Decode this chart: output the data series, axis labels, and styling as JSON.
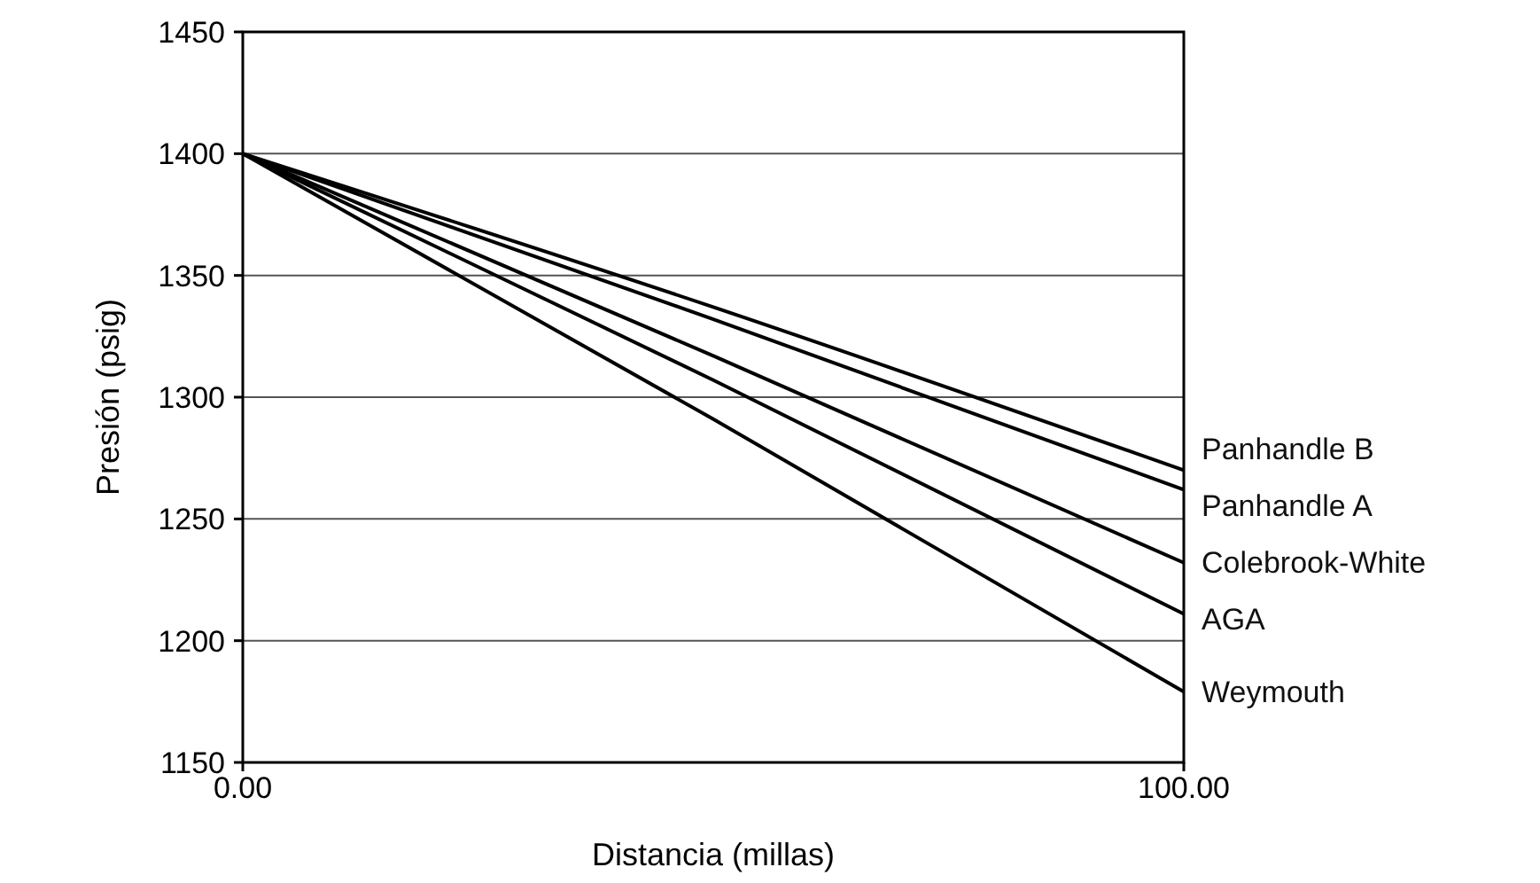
{
  "chart_data": {
    "type": "line",
    "xlabel": "Distancia (millas)",
    "ylabel": "Presión (psig)",
    "xlim": [
      0,
      100
    ],
    "xticks": [
      {
        "value": 0,
        "label": "0.00"
      },
      {
        "value": 100,
        "label": "100.00"
      }
    ],
    "ylim": [
      1150,
      1450
    ],
    "yticks": [
      1150,
      1200,
      1250,
      1300,
      1350,
      1400,
      1450
    ],
    "grid": "y",
    "marker": "none",
    "line_style": "solid",
    "x": [
      0,
      50,
      100
    ],
    "series": [
      {
        "name": "Panhandle B",
        "color": "#000000",
        "values": [
          1400,
          1337,
          1270
        ]
      },
      {
        "name": "Panhandle A",
        "color": "#000000",
        "values": [
          1400,
          1332,
          1262
        ]
      },
      {
        "name": "Colebrook-White",
        "color": "#000000",
        "values": [
          1400,
          1317,
          1232
        ]
      },
      {
        "name": "AGA",
        "color": "#000000",
        "values": [
          1400,
          1307,
          1211
        ]
      },
      {
        "name": "Weymouth",
        "color": "#000000",
        "values": [
          1400,
          1291,
          1179
        ]
      }
    ]
  }
}
